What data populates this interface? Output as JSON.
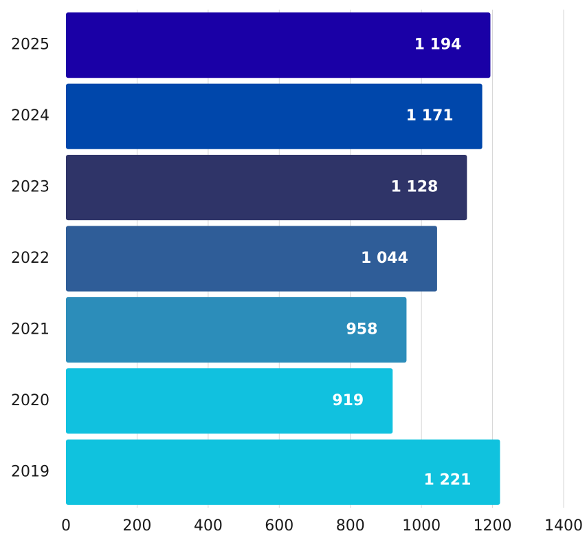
{
  "chart_data": {
    "type": "bar",
    "orientation": "horizontal",
    "categories": [
      "2025",
      "2024",
      "2023",
      "2022",
      "2021",
      "2020",
      "2019"
    ],
    "values": [
      1194,
      1171,
      1128,
      1044,
      958,
      919,
      1221
    ],
    "value_labels": [
      "1 194",
      "1 171",
      "1 128",
      "1 044",
      "958",
      "919",
      "1 221"
    ],
    "bar_colors": [
      "#1a00a6",
      "#0047ab",
      "#2f3468",
      "#2f5d98",
      "#2c8dba",
      "#11c1df",
      "#10c2de"
    ],
    "x_ticks": [
      0,
      200,
      400,
      600,
      800,
      1000,
      1200,
      1400
    ],
    "xlim": [
      0,
      1400
    ],
    "grid": true,
    "title": "",
    "xlabel": "",
    "ylabel": ""
  }
}
